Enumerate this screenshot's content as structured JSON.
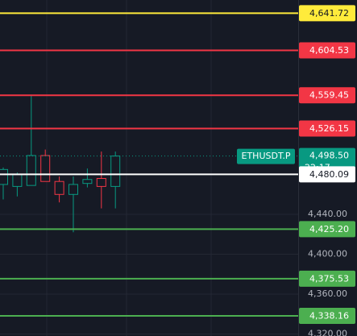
{
  "chart_data": {
    "type": "candlestick",
    "colors": {
      "up": "#089981",
      "down": "#f23645"
    },
    "open": [
      4470,
      4468,
      4469,
      4499,
      4473,
      4460,
      4471,
      4476,
      4468
    ],
    "high": [
      4487,
      4482,
      4559,
      4505,
      4478,
      4478,
      4486,
      4503,
      4503
    ],
    "low": [
      4455,
      4458,
      4469,
      4473,
      4452,
      4422,
      4467,
      4446,
      4446
    ],
    "close": [
      4485,
      4480,
      4499,
      4473,
      4460,
      4470,
      4475,
      4468,
      4498.5
    ],
    "ylim": [
      4318,
      4655
    ],
    "yticks": [
      {
        "value": 4440,
        "label": "4,440.00"
      },
      {
        "value": 4400,
        "label": "4,400.00"
      },
      {
        "value": 4360,
        "label": "4,360.00"
      },
      {
        "value": 4320,
        "label": "4,320.00"
      }
    ],
    "grid": true,
    "levels": [
      {
        "value": 4641.72,
        "label": "4,641.72",
        "color": "#ffeb3b"
      },
      {
        "value": 4604.53,
        "label": "4,604.53",
        "color": "#f23645"
      },
      {
        "value": 4559.45,
        "label": "4,559.45",
        "color": "#f23645"
      },
      {
        "value": 4526.15,
        "label": "4,526.15",
        "color": "#f23645"
      },
      {
        "value": 4480.09,
        "label": "4,480.09",
        "color": "#ffffff"
      },
      {
        "value": 4425.2,
        "label": "4,425.20",
        "color": "#4caf50"
      },
      {
        "value": 4375.53,
        "label": "4,375.53",
        "color": "#4caf50"
      },
      {
        "value": 4338.16,
        "label": "4,338.16",
        "color": "#4caf50"
      }
    ],
    "symbol": "ETHUSDT.P",
    "last_price": {
      "value": 4498.5,
      "label": "4,498.50"
    },
    "countdown": "22:17"
  }
}
